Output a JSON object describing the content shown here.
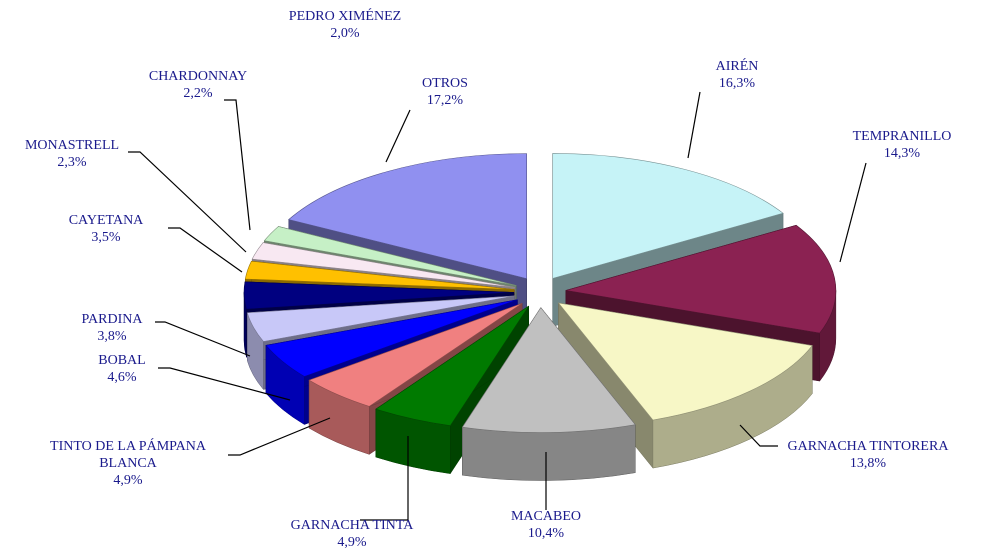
{
  "chart_data": {
    "type": "pie",
    "categories": [
      "AIRÉN",
      "TEMPRANILLO",
      "GARNACHA TINTORERA",
      "MACABEO",
      "GARNACHA TINTA",
      "TINTO DE LA PÁMPANA BLANCA",
      "BOBAL",
      "PARDINA",
      "CAYETANA",
      "MONASTRELL",
      "CHARDONNAY",
      "PEDRO XIMÉNEZ",
      "OTROS"
    ],
    "values": [
      16.3,
      14.3,
      13.8,
      10.4,
      4.9,
      4.9,
      4.6,
      3.8,
      3.5,
      2.3,
      2.2,
      2.0,
      17.2
    ],
    "value_labels": [
      "16,3%",
      "14,3%",
      "13,8%",
      "10,4%",
      "4,9%",
      "4,9%",
      "4,6%",
      "3,8%",
      "3,5%",
      "2,3%",
      "2,2%",
      "2,0%",
      "17,2%"
    ],
    "colors": [
      "#c6f3f7",
      "#8b2252",
      "#f7f7c6",
      "#c0c0c0",
      "#007a00",
      "#f08080",
      "#0000ff",
      "#c8c8f8",
      "#000080",
      "#ffc000",
      "#f8e8f2",
      "#c6f0c6",
      "#9090f0"
    ]
  }
}
